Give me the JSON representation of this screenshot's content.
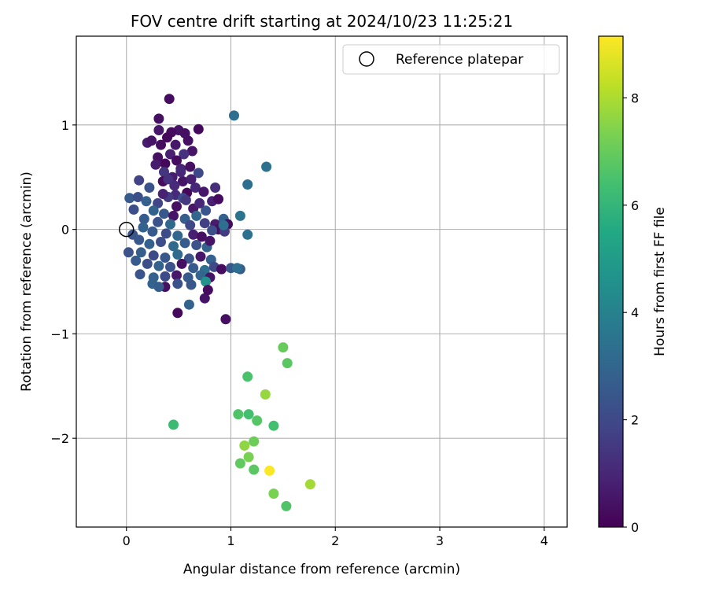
{
  "chart_data": {
    "type": "scatter",
    "title": "FOV centre drift starting at 2024/10/23 11:25:21",
    "xlabel": "Angular distance from reference (arcmin)",
    "ylabel": "Rotation from reference (arcmin)",
    "xlim": [
      -0.48,
      4.22
    ],
    "ylim": [
      -2.85,
      1.85
    ],
    "xticks": [
      0,
      1,
      2,
      3,
      4
    ],
    "yticks": [
      -2,
      -1,
      0,
      1
    ],
    "xtick_labels": [
      "0",
      "1",
      "2",
      "3",
      "4"
    ],
    "ytick_labels": [
      "−2",
      "−1",
      "0",
      "1"
    ],
    "grid": true,
    "legend": {
      "location": "upper right",
      "entries": [
        "Reference platepar"
      ]
    },
    "reference_point": {
      "name": "Reference platepar",
      "x": 0.0,
      "y": 0.0,
      "marker": "open-circle"
    },
    "colorbar": {
      "label": "Hours from first FF file",
      "range": [
        0,
        9.15
      ],
      "ticks": [
        0,
        2,
        4,
        6,
        8
      ],
      "tick_labels": [
        "0",
        "2",
        "4",
        "6",
        "8"
      ],
      "colormap": "viridis"
    },
    "series": [
      {
        "note_columns": [
          "x",
          "y",
          "hours"
        ],
        "points": [
          [
            0.41,
            1.25,
            0.3
          ],
          [
            0.69,
            0.96,
            0.2
          ],
          [
            0.31,
            1.06,
            0.4
          ],
          [
            0.5,
            0.95,
            0.5
          ],
          [
            0.31,
            0.95,
            0.6
          ],
          [
            0.43,
            0.93,
            0.3
          ],
          [
            0.56,
            0.92,
            0.4
          ],
          [
            0.39,
            0.88,
            0.2
          ],
          [
            0.2,
            0.83,
            0.7
          ],
          [
            0.24,
            0.85,
            0.5
          ],
          [
            0.33,
            0.81,
            0.3
          ],
          [
            0.47,
            0.81,
            0.6
          ],
          [
            0.59,
            0.85,
            0.4
          ],
          [
            0.63,
            0.75,
            0.5
          ],
          [
            0.42,
            0.72,
            0.8
          ],
          [
            0.3,
            0.69,
            0.4
          ],
          [
            0.55,
            0.72,
            1.3
          ],
          [
            0.48,
            0.66,
            0.3
          ],
          [
            0.37,
            0.63,
            0.2
          ],
          [
            0.52,
            0.58,
            0.9
          ],
          [
            0.61,
            0.6,
            0.4
          ],
          [
            0.69,
            0.54,
            2.0
          ],
          [
            0.36,
            0.55,
            1.4
          ],
          [
            0.44,
            0.5,
            0.7
          ],
          [
            0.35,
            0.46,
            0.3
          ],
          [
            0.54,
            0.46,
            0.5
          ],
          [
            0.66,
            0.4,
            1.0
          ],
          [
            0.12,
            0.47,
            1.8
          ],
          [
            0.22,
            0.4,
            2.3
          ],
          [
            0.74,
            0.36,
            0.6
          ],
          [
            0.47,
            0.33,
            1.1
          ],
          [
            0.58,
            0.35,
            0.2
          ],
          [
            0.4,
            0.31,
            1.6
          ],
          [
            0.54,
            0.3,
            2.1
          ],
          [
            0.82,
            0.27,
            0.8
          ],
          [
            0.88,
            0.29,
            0.3
          ],
          [
            0.03,
            0.3,
            2.6
          ],
          [
            0.11,
            0.31,
            2.2
          ],
          [
            0.19,
            0.27,
            2.8
          ],
          [
            0.3,
            0.25,
            1.9
          ],
          [
            0.48,
            0.22,
            0.4
          ],
          [
            0.64,
            0.2,
            0.6
          ],
          [
            0.76,
            0.18,
            2.4
          ],
          [
            0.26,
            0.18,
            2.9
          ],
          [
            0.36,
            0.15,
            2.5
          ],
          [
            0.45,
            0.13,
            0.5
          ],
          [
            0.56,
            0.1,
            2.7
          ],
          [
            0.67,
            0.13,
            3.0
          ],
          [
            0.07,
            0.19,
            2.2
          ],
          [
            0.17,
            0.1,
            2.6
          ],
          [
            0.3,
            0.07,
            2.3
          ],
          [
            0.42,
            0.05,
            3.1
          ],
          [
            0.61,
            0.04,
            2.0
          ],
          [
            0.75,
            0.06,
            1.7
          ],
          [
            0.85,
            0.05,
            0.7
          ],
          [
            0.93,
            0.1,
            2.8
          ],
          [
            0.97,
            0.05,
            0.3
          ],
          [
            0.88,
            0.0,
            0.4
          ],
          [
            0.82,
            -0.01,
            2.2
          ],
          [
            0.94,
            -0.02,
            1.6
          ],
          [
            0.16,
            0.02,
            2.9
          ],
          [
            0.06,
            -0.05,
            2.4
          ],
          [
            0.25,
            -0.02,
            2.6
          ],
          [
            0.38,
            -0.04,
            2.1
          ],
          [
            0.49,
            -0.06,
            3.0
          ],
          [
            0.64,
            -0.05,
            0.8
          ],
          [
            0.72,
            -0.07,
            0.4
          ],
          [
            0.12,
            -0.1,
            2.5
          ],
          [
            0.22,
            -0.14,
            2.8
          ],
          [
            0.33,
            -0.12,
            2.2
          ],
          [
            0.45,
            -0.16,
            3.1
          ],
          [
            0.56,
            -0.13,
            2.6
          ],
          [
            0.67,
            -0.15,
            2.3
          ],
          [
            0.77,
            -0.17,
            2.9
          ],
          [
            0.8,
            -0.11,
            0.5
          ],
          [
            0.02,
            -0.22,
            2.3
          ],
          [
            0.14,
            -0.22,
            2.7
          ],
          [
            0.26,
            -0.25,
            2.1
          ],
          [
            0.37,
            -0.27,
            2.5
          ],
          [
            0.49,
            -0.24,
            3.2
          ],
          [
            0.6,
            -0.28,
            2.4
          ],
          [
            0.71,
            -0.26,
            0.6
          ],
          [
            0.81,
            -0.29,
            2.8
          ],
          [
            0.09,
            -0.3,
            2.6
          ],
          [
            0.2,
            -0.33,
            2.2
          ],
          [
            0.31,
            -0.35,
            2.9
          ],
          [
            0.42,
            -0.36,
            2.3
          ],
          [
            0.53,
            -0.33,
            0.4
          ],
          [
            0.64,
            -0.37,
            2.6
          ],
          [
            0.75,
            -0.39,
            3.3
          ],
          [
            0.84,
            -0.36,
            2.0
          ],
          [
            0.91,
            -0.38,
            0.3
          ],
          [
            1.0,
            -0.37,
            2.5
          ],
          [
            1.09,
            -0.38,
            2.7
          ],
          [
            0.13,
            -0.43,
            2.4
          ],
          [
            0.26,
            -0.46,
            2.8
          ],
          [
            0.37,
            -0.45,
            2.1
          ],
          [
            0.48,
            -0.44,
            0.6
          ],
          [
            0.59,
            -0.46,
            2.6
          ],
          [
            0.71,
            -0.44,
            3.0
          ],
          [
            0.8,
            -0.46,
            0.5
          ],
          [
            0.25,
            -0.52,
            2.9
          ],
          [
            0.37,
            -0.55,
            0.4
          ],
          [
            0.49,
            -0.52,
            2.3
          ],
          [
            0.62,
            -0.53,
            2.5
          ],
          [
            0.76,
            -0.5,
            4.6
          ],
          [
            0.31,
            -0.55,
            2.7
          ],
          [
            0.6,
            -0.72,
            2.9
          ],
          [
            0.75,
            -0.66,
            0.5
          ],
          [
            0.78,
            -0.58,
            0.3
          ],
          [
            0.49,
            -0.8,
            0.2
          ],
          [
            0.95,
            -0.86,
            0.4
          ],
          [
            1.03,
            1.09,
            3.3
          ],
          [
            1.34,
            0.6,
            3.4
          ],
          [
            1.16,
            0.43,
            3.3
          ],
          [
            1.09,
            0.13,
            3.5
          ],
          [
            1.16,
            -0.05,
            3.4
          ],
          [
            0.93,
            0.04,
            3.3
          ],
          [
            1.06,
            -0.37,
            3.3
          ],
          [
            0.85,
            0.4,
            1.2
          ],
          [
            0.7,
            0.25,
            1.0
          ],
          [
            0.57,
            0.28,
            1.5
          ],
          [
            0.35,
            0.34,
            0.9
          ],
          [
            0.46,
            0.42,
            1.1
          ],
          [
            0.28,
            0.62,
            0.7
          ],
          [
            0.62,
            0.48,
            0.8
          ],
          [
            0.4,
            0.48,
            1.3
          ],
          [
            0.52,
            0.55,
            1.0
          ],
          [
            0.45,
            -1.87,
            6.2
          ],
          [
            1.5,
            -1.13,
            7.0
          ],
          [
            1.54,
            -1.28,
            6.8
          ],
          [
            1.16,
            -1.41,
            6.5
          ],
          [
            1.33,
            -1.58,
            7.7
          ],
          [
            1.07,
            -1.77,
            6.6
          ],
          [
            1.17,
            -1.77,
            6.4
          ],
          [
            1.25,
            -1.83,
            6.7
          ],
          [
            1.41,
            -1.88,
            6.4
          ],
          [
            1.22,
            -2.03,
            7.1
          ],
          [
            1.13,
            -2.07,
            7.6
          ],
          [
            1.17,
            -2.18,
            7.3
          ],
          [
            1.09,
            -2.24,
            6.9
          ],
          [
            1.22,
            -2.3,
            6.8
          ],
          [
            1.37,
            -2.31,
            9.1
          ],
          [
            1.76,
            -2.44,
            7.9
          ],
          [
            1.41,
            -2.53,
            7.3
          ],
          [
            1.53,
            -2.65,
            6.6
          ]
        ]
      }
    ]
  }
}
